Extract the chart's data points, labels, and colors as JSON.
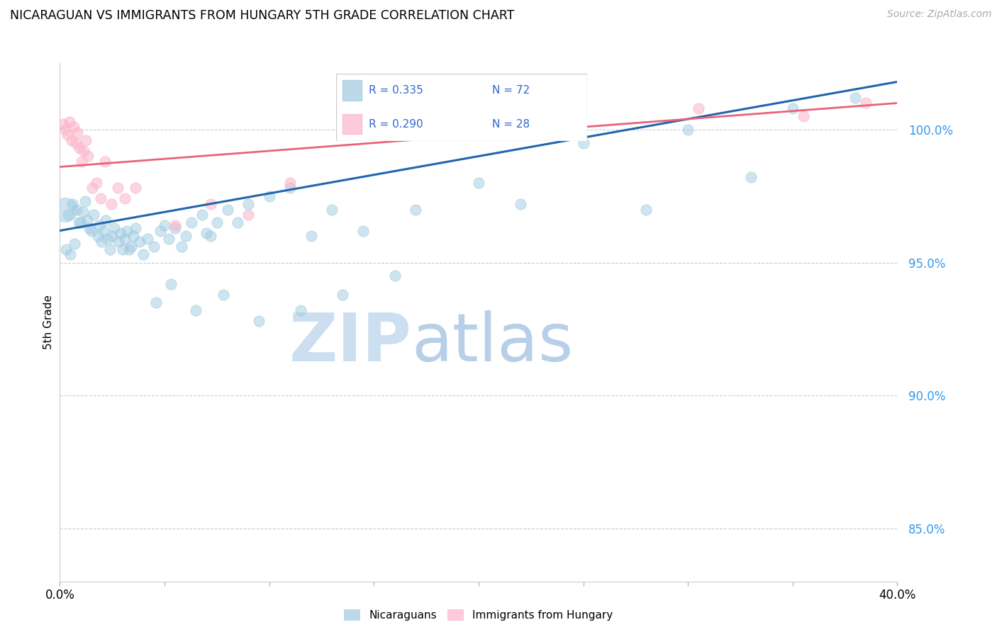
{
  "title": "NICARAGUAN VS IMMIGRANTS FROM HUNGARY 5TH GRADE CORRELATION CHART",
  "source": "Source: ZipAtlas.com",
  "ylabel": "5th Grade",
  "xlim": [
    0.0,
    40.0
  ],
  "ylim": [
    83.0,
    102.5
  ],
  "yticks": [
    85.0,
    90.0,
    95.0,
    100.0
  ],
  "ytick_labels": [
    "85.0%",
    "90.0%",
    "95.0%",
    "100.0%"
  ],
  "xticks": [
    0.0,
    5.0,
    10.0,
    15.0,
    20.0,
    25.0,
    30.0,
    35.0,
    40.0
  ],
  "legend_R_blue": "R = 0.335",
  "legend_N_blue": "N = 72",
  "legend_R_pink": "R = 0.290",
  "legend_N_pink": "N = 28",
  "blue_color": "#9ecae1",
  "pink_color": "#fbb4c9",
  "trendline_blue": "#2166ac",
  "trendline_pink": "#e8637a",
  "watermark_ZIP": "#c8dff0",
  "watermark_atlas": "#b8cfe8",
  "blue_scatter_x": [
    0.4,
    0.6,
    0.8,
    1.0,
    1.1,
    1.2,
    1.3,
    1.5,
    1.6,
    1.8,
    1.9,
    2.0,
    2.1,
    2.2,
    2.4,
    2.5,
    2.6,
    2.8,
    2.9,
    3.0,
    3.1,
    3.2,
    3.4,
    3.5,
    3.6,
    3.8,
    4.0,
    4.2,
    4.5,
    4.8,
    5.0,
    5.2,
    5.5,
    5.8,
    6.0,
    6.3,
    6.8,
    7.0,
    7.2,
    7.5,
    8.0,
    8.5,
    9.0,
    10.0,
    11.0,
    12.0,
    13.0,
    14.5,
    17.0,
    20.0,
    25.0,
    30.0,
    35.0,
    38.0,
    0.3,
    0.5,
    0.7,
    0.9,
    1.4,
    2.3,
    3.3,
    4.6,
    5.3,
    6.5,
    7.8,
    9.5,
    11.5,
    13.5,
    16.0,
    22.0,
    28.0,
    33.0
  ],
  "blue_scatter_y": [
    96.8,
    97.2,
    97.0,
    96.5,
    96.9,
    97.3,
    96.6,
    96.2,
    96.8,
    96.0,
    96.4,
    95.8,
    96.2,
    96.6,
    95.5,
    96.0,
    96.3,
    95.8,
    96.1,
    95.5,
    95.9,
    96.2,
    95.6,
    96.0,
    96.3,
    95.8,
    95.3,
    95.9,
    95.6,
    96.2,
    96.4,
    95.9,
    96.3,
    95.6,
    96.0,
    96.5,
    96.8,
    96.1,
    96.0,
    96.5,
    97.0,
    96.5,
    97.2,
    97.5,
    97.8,
    96.0,
    97.0,
    96.2,
    97.0,
    98.0,
    99.5,
    100.0,
    100.8,
    101.2,
    95.5,
    95.3,
    95.7,
    96.5,
    96.3,
    95.9,
    95.5,
    93.5,
    94.2,
    93.2,
    93.8,
    92.8,
    93.2,
    93.8,
    94.5,
    97.2,
    97.0,
    98.2
  ],
  "blue_scatter_sizes": [
    80,
    80,
    80,
    80,
    80,
    80,
    80,
    80,
    80,
    80,
    80,
    80,
    80,
    80,
    80,
    80,
    80,
    80,
    80,
    80,
    80,
    80,
    80,
    80,
    80,
    80,
    80,
    80,
    80,
    80,
    80,
    80,
    80,
    80,
    80,
    80,
    80,
    80,
    80,
    80,
    80,
    80,
    80,
    80,
    80,
    80,
    80,
    80,
    80,
    80,
    80,
    80,
    80,
    80,
    80,
    80,
    80,
    80,
    80,
    80,
    80,
    80,
    80,
    80,
    80,
    80,
    80,
    80,
    80,
    80,
    80,
    80
  ],
  "large_blue_x": 0.25,
  "large_blue_y": 97.0,
  "large_blue_size": 600,
  "pink_scatter_x": [
    0.15,
    0.25,
    0.35,
    0.45,
    0.55,
    0.65,
    0.75,
    0.85,
    0.95,
    1.05,
    1.15,
    1.25,
    1.35,
    1.55,
    1.75,
    1.95,
    2.15,
    2.45,
    2.75,
    3.1,
    3.6,
    5.5,
    7.2,
    9.0,
    11.0,
    30.5,
    35.5,
    38.5
  ],
  "pink_scatter_y": [
    100.2,
    100.0,
    99.8,
    100.3,
    99.6,
    100.1,
    99.5,
    99.9,
    99.3,
    98.8,
    99.2,
    99.6,
    99.0,
    97.8,
    98.0,
    97.4,
    98.8,
    97.2,
    97.8,
    97.4,
    97.8,
    96.4,
    97.2,
    96.8,
    98.0,
    100.8,
    100.5,
    101.0
  ],
  "pink_scatter_sizes": [
    80,
    80,
    80,
    80,
    80,
    80,
    80,
    80,
    80,
    80,
    80,
    80,
    80,
    80,
    80,
    80,
    80,
    80,
    80,
    80,
    80,
    80,
    80,
    80,
    80,
    80,
    80,
    80
  ],
  "blue_trend_x0": 0.0,
  "blue_trend_y0": 96.2,
  "blue_trend_x1": 40.0,
  "blue_trend_y1": 101.8,
  "pink_trend_x0": 0.0,
  "pink_trend_y0": 98.6,
  "pink_trend_x1": 40.0,
  "pink_trend_y1": 101.0
}
